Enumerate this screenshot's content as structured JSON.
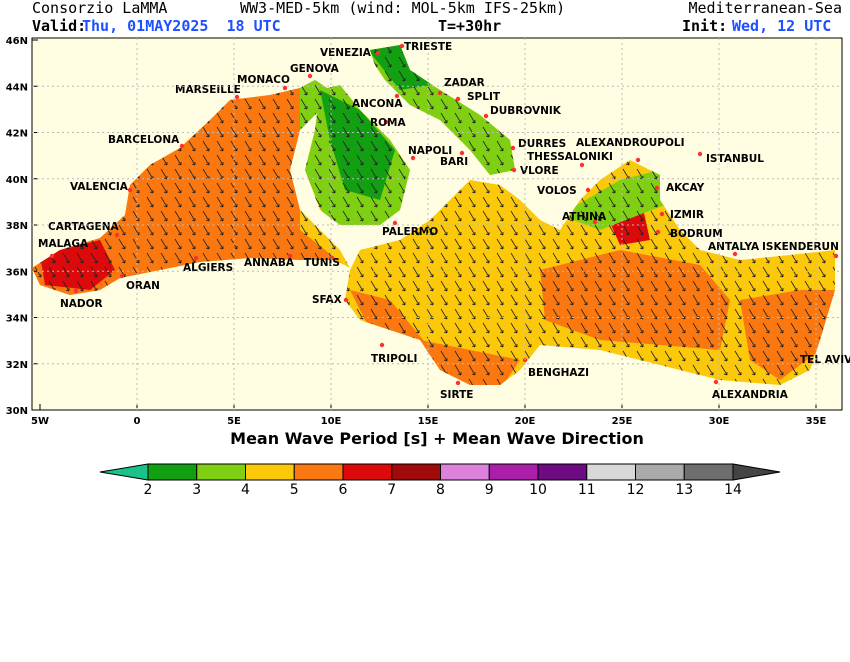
{
  "header": {
    "org": "Consorzio LaMMA",
    "model": "WW3-MED-5km (wind: MOL-5km IFS-25km)",
    "region": "Mediterranean-Sea",
    "valid_label": "Valid:",
    "valid_value": "Thu, 01MAY2025  18 UTC",
    "step": "T=+30hr",
    "init_label": "Init:",
    "init_value": "Wed, 12 UTC"
  },
  "map": {
    "y_labels": [
      "46N",
      "44N",
      "42N",
      "40N",
      "38N",
      "36N",
      "34N",
      "32N",
      "30N"
    ],
    "x_labels": [
      "5W",
      "0",
      "5E",
      "10E",
      "15E",
      "20E",
      "25E",
      "30E",
      "35E"
    ],
    "cities": [
      "VENEZIA",
      "TRIESTE",
      "GENOVA",
      "MONACO",
      "MARSEILLE",
      "ZADAR",
      "SPLIT",
      "ANCONA",
      "DUBROVNIK",
      "ROMA",
      "BARCELONA",
      "DURRES",
      "ALEXANDROUPOLI",
      "NAPOLI",
      "BARI",
      "THESSALONIKI",
      "ISTANBUL",
      "VALENCIA",
      "VLORE",
      "VOLOS",
      "AKCAY",
      "ATHINA",
      "IZMIR",
      "CARTAGENA",
      "PALERMO",
      "BODRUM",
      "MALAGA",
      "ANTALYA",
      "ISKENDERUN",
      "ALGIERS",
      "ANNABA",
      "TUNIS",
      "ORAN",
      "NADOR",
      "SFAX",
      "TRIPOLI",
      "BENGHAZI",
      "TEL AVIV",
      "SIRTE",
      "ALEXANDRIA"
    ],
    "caption": "Mean Wave Period [s] + Mean Wave Direction"
  },
  "legend": {
    "ticks": [
      2,
      3,
      4,
      5,
      6,
      7,
      8,
      9,
      10,
      11,
      12,
      13,
      14
    ],
    "colors": [
      "#19c28a",
      "#12a012",
      "#7fcf12",
      "#fbc80a",
      "#fa780f",
      "#dc0a0a",
      "#a00a0a",
      "#dc82dc",
      "#aa1eaa",
      "#6e0a82",
      "#d8d8d8",
      "#aaaaaa",
      "#6e6e6e",
      "#444444"
    ]
  }
}
